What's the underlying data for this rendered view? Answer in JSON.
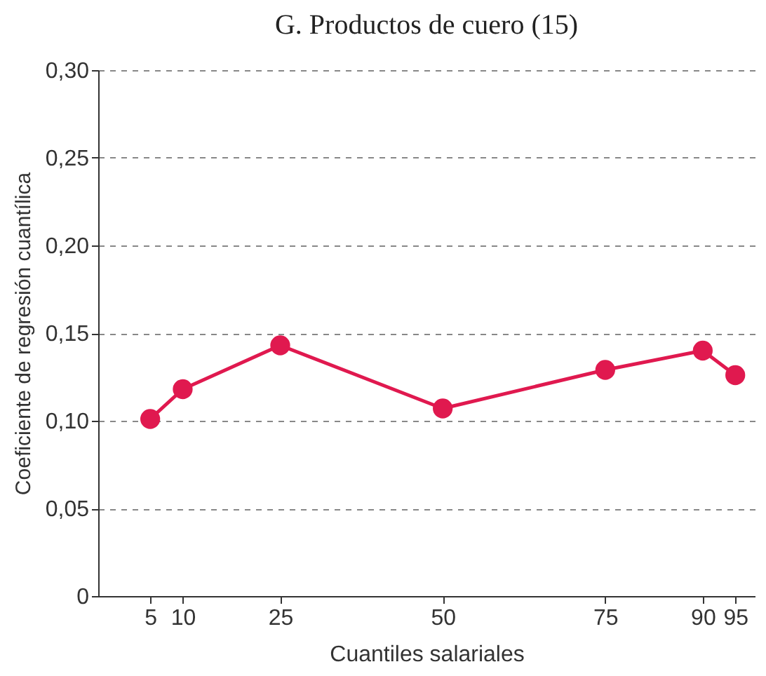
{
  "chart_data": {
    "type": "line",
    "title": "G. Productos de cuero (15)",
    "xlabel": "Cuantiles salariales",
    "ylabel": "Coeficiente de regresión cuantílica",
    "x": [
      5,
      10,
      25,
      50,
      75,
      90,
      95
    ],
    "series": [
      {
        "color": "#e0194f",
        "values": [
          0.101,
          0.118,
          0.143,
          0.107,
          0.129,
          0.14,
          0.126
        ]
      }
    ],
    "xlim": [
      -3,
      98
    ],
    "xticks": [
      5,
      10,
      25,
      50,
      75,
      90,
      95
    ],
    "ylim": [
      0,
      0.3
    ],
    "yticks": [
      {
        "value": 0,
        "label": "0"
      },
      {
        "value": 0.05,
        "label": "0,05"
      },
      {
        "value": 0.1,
        "label": "0,10"
      },
      {
        "value": 0.15,
        "label": "0,15"
      },
      {
        "value": 0.2,
        "label": "0,20"
      },
      {
        "value": 0.25,
        "label": "0,25"
      },
      {
        "value": 0.3,
        "label": "0,30"
      }
    ],
    "grid": "y",
    "marker": "circle",
    "line_style": "solid"
  }
}
